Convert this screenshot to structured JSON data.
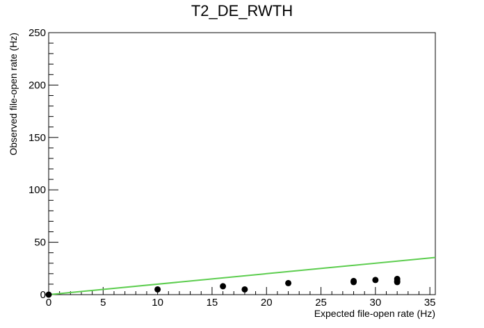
{
  "chart_data": {
    "type": "scatter",
    "title": "T2_DE_RWTH",
    "xlabel": "Expected file-open rate (Hz)",
    "ylabel": "Observed file-open rate (Hz)",
    "xlim": [
      0,
      35.5
    ],
    "ylim": [
      0,
      250
    ],
    "x_ticks": [
      0,
      5,
      10,
      15,
      20,
      25,
      30,
      35
    ],
    "y_ticks": [
      0,
      50,
      100,
      150,
      200,
      250
    ],
    "grid": false,
    "points": [
      {
        "x": 0,
        "y": 0
      },
      {
        "x": 10,
        "y": 5
      },
      {
        "x": 16,
        "y": 8
      },
      {
        "x": 18,
        "y": 5
      },
      {
        "x": 22,
        "y": 11
      },
      {
        "x": 28,
        "y": 12
      },
      {
        "x": 28,
        "y": 13
      },
      {
        "x": 30,
        "y": 14
      },
      {
        "x": 32,
        "y": 12
      },
      {
        "x": 32,
        "y": 13
      },
      {
        "x": 32,
        "y": 15
      }
    ],
    "reference_line": {
      "x": [
        0,
        35.5
      ],
      "y": [
        0,
        35.5
      ],
      "color": "#5ccd4e"
    },
    "marker_color": "#000000"
  }
}
